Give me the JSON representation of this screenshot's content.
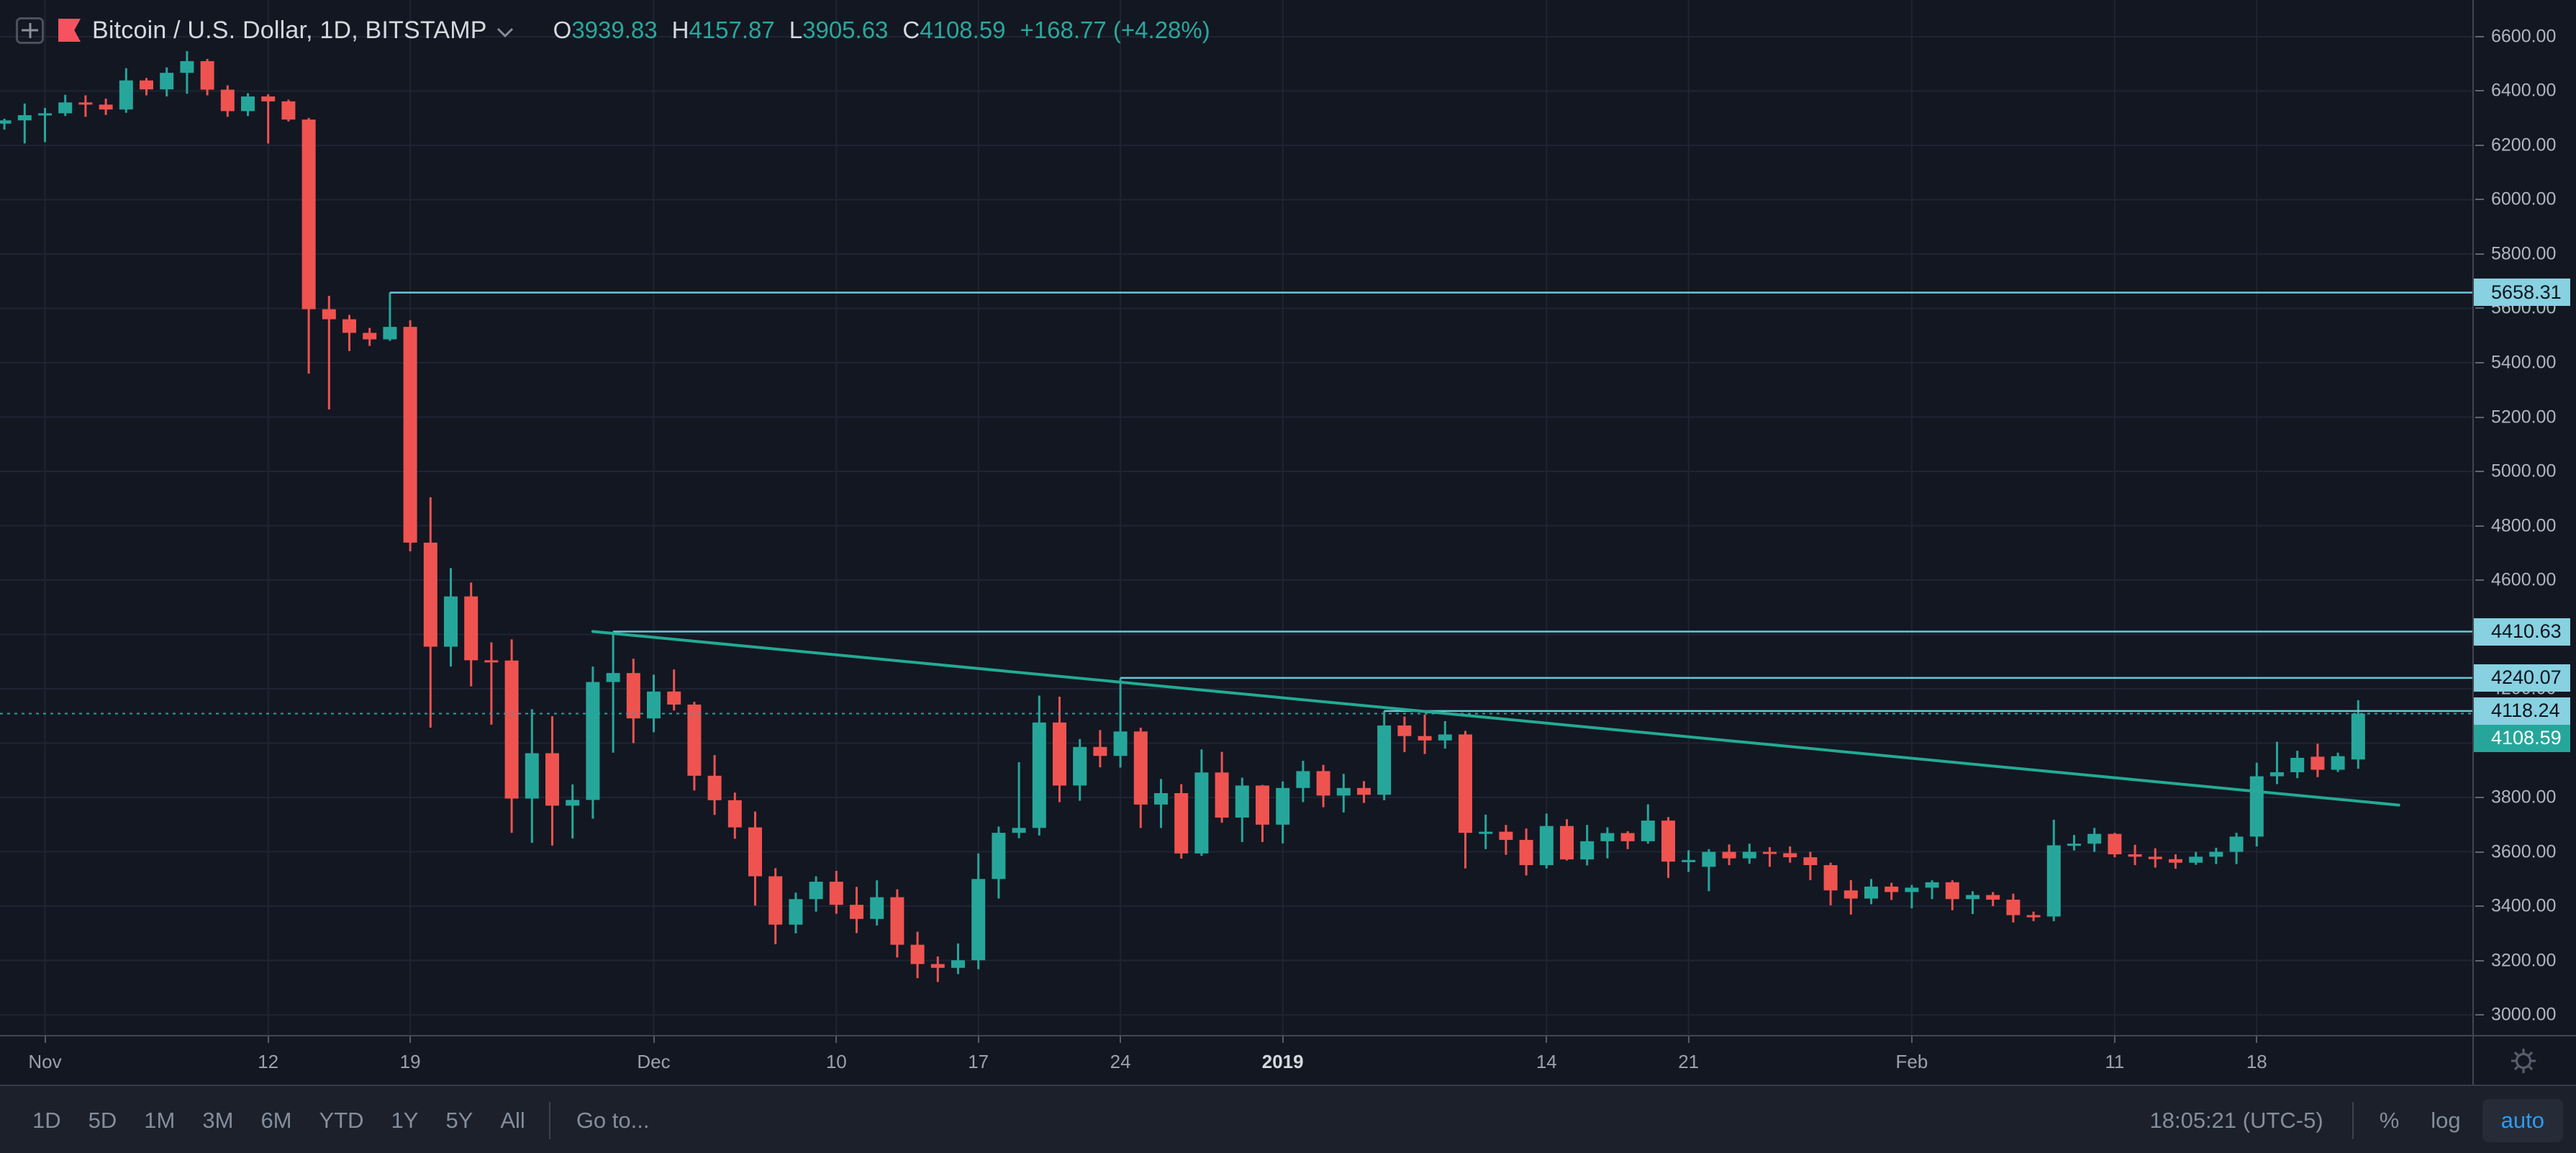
{
  "header": {
    "symbol_title": "Bitcoin / U.S. Dollar, 1D, BITSTAMP",
    "ohlc": {
      "o_label": "O",
      "o": "3939.83",
      "h_label": "H",
      "h": "4157.87",
      "l_label": "L",
      "l": "3905.63",
      "c_label": "C",
      "c": "4108.59",
      "change": "+168.77 (+4.28%)"
    }
  },
  "toolbar": {
    "ranges": [
      "1D",
      "5D",
      "1M",
      "3M",
      "6M",
      "YTD",
      "1Y",
      "5Y",
      "All"
    ],
    "goto": "Go to...",
    "clock": "18:05:21 (UTC-5)",
    "percent": "%",
    "log": "log",
    "auto": "auto"
  },
  "icons": {
    "legend": [
      "plus-icon",
      "symbol-flag-icon",
      "chevron-down-icon"
    ],
    "time_scale": [
      "gear-icon"
    ]
  },
  "colors": {
    "background": "#131722",
    "grid": "#1e2433",
    "up": "#26a69a",
    "down": "#ef5350",
    "ray_line": "#68c8da",
    "ray_label_bg": "#87d1e1",
    "trendline": "#22ab94",
    "current_dotted": "#26a69a",
    "last_label_bg": "#26a69a",
    "axis_text": "#b2b5be",
    "auto_blue": "#2d9bf0",
    "legend_red_flag": "#f7525f"
  },
  "chart_data": {
    "type": "candlestick",
    "title": "Bitcoin / U.S. Dollar, 1D, BITSTAMP",
    "current_ohlc": {
      "open": 3939.83,
      "high": 4157.87,
      "low": 3905.63,
      "close": 4108.59,
      "change": 168.77,
      "change_pct": 4.28
    },
    "price_axis": {
      "ticks": [
        3000,
        3200,
        3400,
        3600,
        3800,
        4000,
        4200,
        4400,
        4600,
        4800,
        5000,
        5200,
        5400,
        5600,
        5800,
        6000,
        6200,
        6400,
        6600
      ],
      "ylim": [
        2926,
        6735
      ],
      "decimals": 2
    },
    "time_axis": {
      "labels": [
        {
          "text": "Nov",
          "index": 0
        },
        {
          "text": "12",
          "index": 11
        },
        {
          "text": "19",
          "index": 18
        },
        {
          "text": "Dec",
          "index": 30
        },
        {
          "text": "10",
          "index": 39
        },
        {
          "text": "17",
          "index": 46
        },
        {
          "text": "24",
          "index": 53
        },
        {
          "text": "2019",
          "index": 61,
          "bold": true
        },
        {
          "text": "14",
          "index": 74
        },
        {
          "text": "21",
          "index": 81
        },
        {
          "text": "Feb",
          "index": 92
        },
        {
          "text": "11",
          "index": 102
        },
        {
          "text": "18",
          "index": 109
        }
      ]
    },
    "candles": {
      "start_index": -2,
      "ohlc": [
        [
          6280,
          6298,
          6258,
          6292
        ],
        [
          6292,
          6354,
          6207,
          6311
        ],
        [
          6311,
          6338,
          6212,
          6318
        ],
        [
          6318,
          6386,
          6308,
          6358
        ],
        [
          6358,
          6384,
          6305,
          6350
        ],
        [
          6350,
          6372,
          6312,
          6332
        ],
        [
          6332,
          6484,
          6320,
          6439
        ],
        [
          6439,
          6448,
          6384,
          6406
        ],
        [
          6406,
          6487,
          6380,
          6467
        ],
        [
          6467,
          6547,
          6390,
          6510
        ],
        [
          6510,
          6518,
          6384,
          6405
        ],
        [
          6405,
          6421,
          6305,
          6326
        ],
        [
          6326,
          6392,
          6308,
          6380
        ],
        [
          6380,
          6388,
          6207,
          6362
        ],
        [
          6362,
          6368,
          6288,
          6295
        ],
        [
          6295,
          6301,
          5360,
          5597
        ],
        [
          5597,
          5646,
          5228,
          5560
        ],
        [
          5560,
          5576,
          5443,
          5510
        ],
        [
          5510,
          5528,
          5462,
          5486
        ],
        [
          5486,
          5658.31,
          5480,
          5532
        ],
        [
          5532,
          5556,
          4706,
          4738
        ],
        [
          4738,
          4905,
          4057,
          4355
        ],
        [
          4355,
          4644,
          4282,
          4540
        ],
        [
          4540,
          4591,
          4209,
          4305
        ],
        [
          4305,
          4371,
          4068,
          4304
        ],
        [
          4304,
          4382,
          3670,
          3796
        ],
        [
          3796,
          4125,
          3633,
          3963
        ],
        [
          3963,
          4099,
          3623,
          3770
        ],
        [
          3770,
          3848,
          3649,
          3791
        ],
        [
          3791,
          4282,
          3722,
          4225
        ],
        [
          4225,
          4410.63,
          3965,
          4258
        ],
        [
          4258,
          4311,
          4000,
          4091
        ],
        [
          4091,
          4252,
          4040,
          4190
        ],
        [
          4190,
          4271,
          4120,
          4142
        ],
        [
          4142,
          4152,
          3826,
          3880
        ],
        [
          3880,
          3956,
          3736,
          3790
        ],
        [
          3790,
          3818,
          3648,
          3690
        ],
        [
          3690,
          3748,
          3402,
          3510
        ],
        [
          3510,
          3540,
          3260,
          3332
        ],
        [
          3332,
          3450,
          3300,
          3426
        ],
        [
          3426,
          3510,
          3380,
          3490
        ],
        [
          3490,
          3530,
          3372,
          3405
        ],
        [
          3405,
          3471,
          3301,
          3353
        ],
        [
          3353,
          3495,
          3329,
          3433
        ],
        [
          3433,
          3462,
          3211,
          3258
        ],
        [
          3258,
          3306,
          3135,
          3187
        ],
        [
          3187,
          3215,
          3121,
          3173
        ],
        [
          3173,
          3263,
          3150,
          3201
        ],
        [
          3201,
          3594,
          3168,
          3500
        ],
        [
          3500,
          3693,
          3428,
          3670
        ],
        [
          3670,
          3930,
          3650,
          3688
        ],
        [
          3688,
          4175,
          3660,
          4076
        ],
        [
          4076,
          4171,
          3783,
          3844
        ],
        [
          3844,
          4015,
          3788,
          3986
        ],
        [
          3986,
          4048,
          3911,
          3953
        ],
        [
          3953,
          4240.07,
          3910,
          4043
        ],
        [
          4043,
          4057,
          3688,
          3774
        ],
        [
          3774,
          3868,
          3688,
          3816
        ],
        [
          3816,
          3849,
          3575,
          3594
        ],
        [
          3594,
          3977,
          3585,
          3892
        ],
        [
          3892,
          3968,
          3707,
          3726
        ],
        [
          3726,
          3873,
          3636,
          3844
        ],
        [
          3844,
          3846,
          3636,
          3700
        ],
        [
          3700,
          3859,
          3631,
          3835
        ],
        [
          3835,
          3935,
          3783,
          3897
        ],
        [
          3897,
          3920,
          3764,
          3807
        ],
        [
          3807,
          3887,
          3745,
          3835
        ],
        [
          3835,
          3860,
          3780,
          3810
        ],
        [
          3810,
          4118.24,
          3790,
          4065
        ],
        [
          4065,
          4098,
          3967,
          4026
        ],
        [
          4026,
          4105,
          3960,
          4010
        ],
        [
          4010,
          4081,
          3980,
          4032
        ],
        [
          4032,
          4045,
          3539,
          3670
        ],
        [
          3670,
          3737,
          3610,
          3674
        ],
        [
          3674,
          3699,
          3589,
          3644
        ],
        [
          3644,
          3686,
          3513,
          3551
        ],
        [
          3551,
          3741,
          3539,
          3695
        ],
        [
          3695,
          3720,
          3568,
          3572
        ],
        [
          3572,
          3699,
          3550,
          3639
        ],
        [
          3639,
          3690,
          3576,
          3669
        ],
        [
          3669,
          3676,
          3610,
          3639
        ],
        [
          3639,
          3775,
          3630,
          3715
        ],
        [
          3715,
          3728,
          3504,
          3564
        ],
        [
          3564,
          3606,
          3526,
          3570
        ],
        [
          3545,
          3610,
          3455,
          3600
        ],
        [
          3600,
          3627,
          3551,
          3576
        ],
        [
          3576,
          3630,
          3556,
          3600
        ],
        [
          3600,
          3617,
          3545,
          3595
        ],
        [
          3595,
          3620,
          3560,
          3580
        ],
        [
          3580,
          3600,
          3496,
          3551
        ],
        [
          3551,
          3560,
          3403,
          3458
        ],
        [
          3458,
          3496,
          3369,
          3428
        ],
        [
          3428,
          3500,
          3407,
          3472
        ],
        [
          3472,
          3486,
          3423,
          3452
        ],
        [
          3452,
          3478,
          3392,
          3468
        ],
        [
          3468,
          3495,
          3426,
          3488
        ],
        [
          3488,
          3495,
          3385,
          3426
        ],
        [
          3426,
          3455,
          3371,
          3441
        ],
        [
          3441,
          3452,
          3400,
          3424
        ],
        [
          3424,
          3446,
          3340,
          3367
        ],
        [
          3367,
          3380,
          3345,
          3362
        ],
        [
          3362,
          3718,
          3345,
          3624
        ],
        [
          3624,
          3662,
          3605,
          3630
        ],
        [
          3630,
          3688,
          3600,
          3666
        ],
        [
          3666,
          3670,
          3580,
          3591
        ],
        [
          3591,
          3626,
          3551,
          3582
        ],
        [
          3582,
          3613,
          3542,
          3573
        ],
        [
          3573,
          3591,
          3538,
          3560
        ],
        [
          3560,
          3600,
          3552,
          3582
        ],
        [
          3582,
          3615,
          3555,
          3600
        ],
        [
          3600,
          3670,
          3555,
          3656
        ],
        [
          3656,
          3928,
          3620,
          3878
        ],
        [
          3878,
          4005,
          3849,
          3893
        ],
        [
          3893,
          3972,
          3871,
          3946
        ],
        [
          3950,
          3998,
          3875,
          3902
        ],
        [
          3902,
          3965,
          3894,
          3952
        ],
        [
          3939.83,
          4157.87,
          3905.63,
          4108.59
        ]
      ]
    },
    "price_lines": [
      {
        "price": 5658.31,
        "start_index": 17
      },
      {
        "price": 4410.63,
        "start_index": 28
      },
      {
        "price": 4240.07,
        "start_index": 53
      },
      {
        "price": 4118.24,
        "start_index": 66
      }
    ],
    "current_price_line": {
      "price": 4108.59,
      "style": "dotted",
      "full_width": true
    },
    "trendline": {
      "from": {
        "index": 27,
        "price": 4411
      },
      "to": {
        "index": 116,
        "price": 3772
      }
    },
    "legend_position": "top-left",
    "grid": true
  }
}
